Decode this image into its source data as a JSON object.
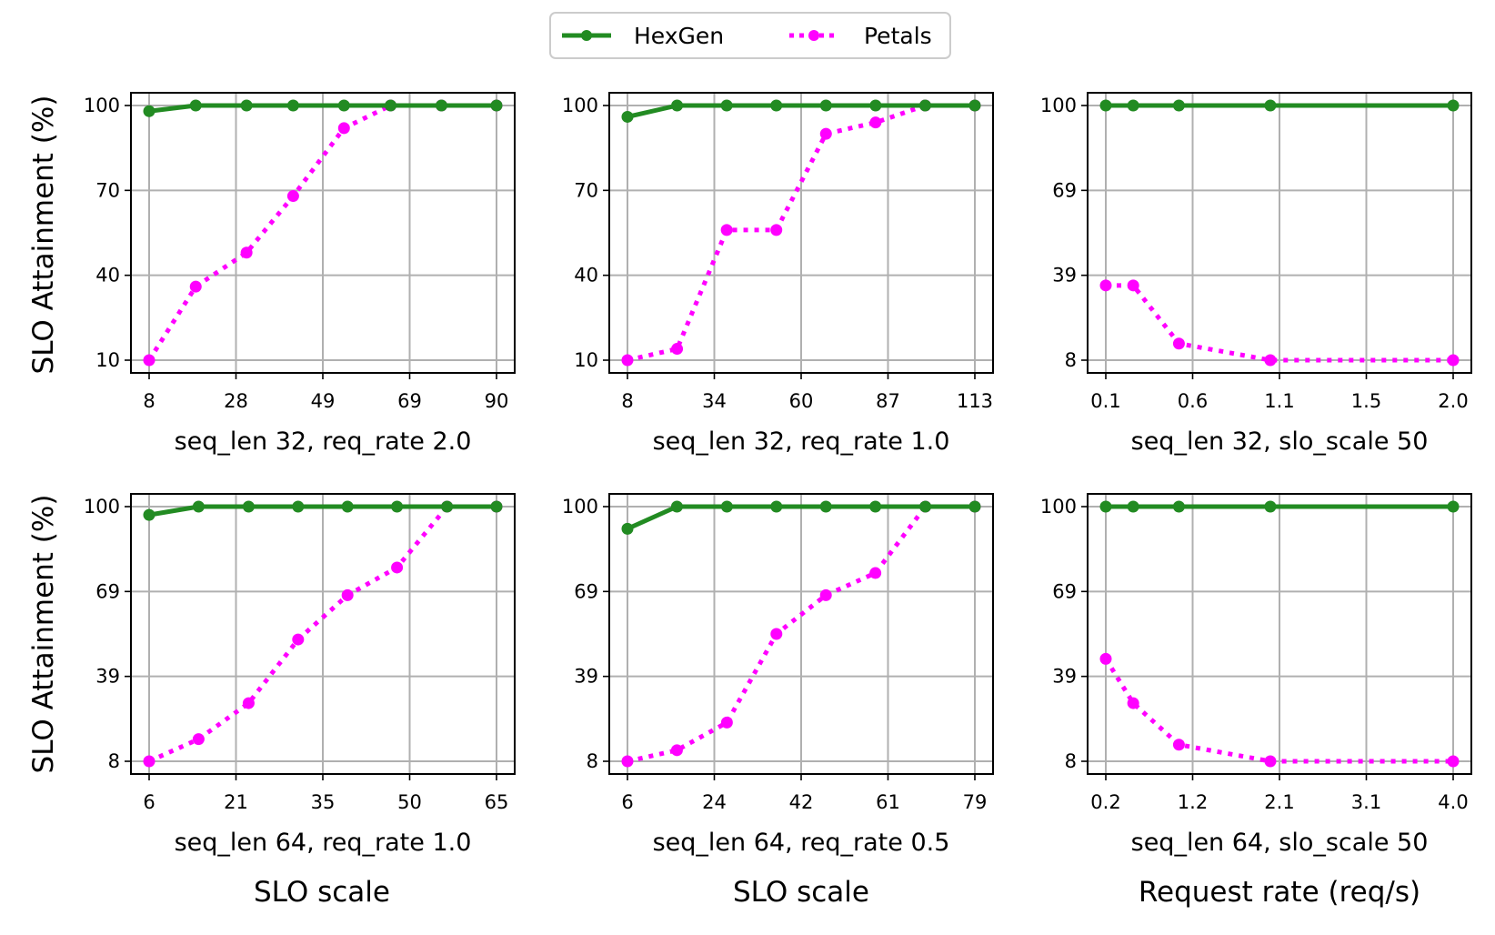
{
  "chart_data": [
    {
      "type": "line",
      "xlabel": "seq_len 32, req_rate 2.0",
      "ylabel": "SLO Attainment (%)",
      "xticks": [
        "8",
        "28",
        "49",
        "69",
        "90"
      ],
      "xlim": [
        8,
        90
      ],
      "yticks": [
        "10",
        "40",
        "70",
        "100"
      ],
      "ylim": [
        10,
        100
      ],
      "series": [
        {
          "name": "HexGen",
          "x": [
            8,
            19,
            31,
            42,
            54,
            65,
            77,
            90
          ],
          "y": [
            98,
            100,
            100,
            100,
            100,
            100,
            100,
            100
          ]
        },
        {
          "name": "Petals",
          "x": [
            8,
            19,
            31,
            42,
            54,
            65,
            77,
            90
          ],
          "y": [
            10,
            36,
            48,
            68,
            92,
            100,
            100,
            100
          ]
        }
      ]
    },
    {
      "type": "line",
      "xlabel": "seq_len 32, req_rate 1.0",
      "ylabel": "",
      "xticks": [
        "8",
        "34",
        "60",
        "87",
        "113"
      ],
      "xlim": [
        8,
        113
      ],
      "yticks": [
        "10",
        "40",
        "70",
        "100"
      ],
      "ylim": [
        10,
        100
      ],
      "series": [
        {
          "name": "HexGen",
          "x": [
            8,
            23,
            38,
            53,
            68,
            83,
            98,
            113
          ],
          "y": [
            96,
            100,
            100,
            100,
            100,
            100,
            100,
            100
          ]
        },
        {
          "name": "Petals",
          "x": [
            8,
            23,
            38,
            53,
            68,
            83,
            98,
            113
          ],
          "y": [
            10,
            14,
            56,
            56,
            90,
            94,
            100,
            100
          ]
        }
      ]
    },
    {
      "type": "line",
      "xlabel": "seq_len 32, slo_scale 50",
      "ylabel": "",
      "xticks": [
        "0.1",
        "0.6",
        "1.1",
        "1.5",
        "2.0"
      ],
      "xlim": [
        0.1,
        2.0
      ],
      "yticks": [
        "8",
        "39",
        "69",
        "100"
      ],
      "ylim": [
        8,
        100
      ],
      "series": [
        {
          "name": "HexGen",
          "x": [
            0.1,
            0.25,
            0.5,
            1.0,
            2.0
          ],
          "y": [
            100,
            100,
            100,
            100,
            100
          ]
        },
        {
          "name": "Petals",
          "x": [
            0.1,
            0.25,
            0.5,
            1.0,
            2.0
          ],
          "y": [
            35,
            35,
            14,
            8,
            8
          ]
        }
      ]
    },
    {
      "type": "line",
      "xlabel": "seq_len 64, req_rate 1.0",
      "ylabel": "SLO Attainment (%)",
      "xticks": [
        "6",
        "21",
        "35",
        "50",
        "65"
      ],
      "xlim": [
        6,
        65
      ],
      "yticks": [
        "8",
        "39",
        "69",
        "100"
      ],
      "ylim": [
        8,
        100
      ],
      "series": [
        {
          "name": "HexGen",
          "x": [
            6,
            14.4,
            22.9,
            31.3,
            39.7,
            48.1,
            56.6,
            65
          ],
          "y": [
            97,
            100,
            100,
            100,
            100,
            100,
            100,
            100
          ]
        },
        {
          "name": "Petals",
          "x": [
            6,
            14.4,
            22.9,
            31.3,
            39.7,
            48.1,
            56.6,
            65
          ],
          "y": [
            8,
            16,
            29,
            52,
            68,
            78,
            100,
            100
          ]
        }
      ]
    },
    {
      "type": "line",
      "xlabel": "seq_len 64, req_rate 0.5",
      "ylabel": "",
      "xticks": [
        "6",
        "24",
        "42",
        "61",
        "79"
      ],
      "xlim": [
        6,
        79
      ],
      "yticks": [
        "8",
        "39",
        "69",
        "100"
      ],
      "ylim": [
        8,
        100
      ],
      "series": [
        {
          "name": "HexGen",
          "x": [
            6,
            16.4,
            26.9,
            37.3,
            47.7,
            58.1,
            68.6,
            79
          ],
          "y": [
            92,
            100,
            100,
            100,
            100,
            100,
            100,
            100
          ]
        },
        {
          "name": "Petals",
          "x": [
            6,
            16.4,
            26.9,
            37.3,
            47.7,
            58.1,
            68.6,
            79
          ],
          "y": [
            8,
            12,
            22,
            54,
            68,
            76,
            100,
            100
          ]
        }
      ]
    },
    {
      "type": "line",
      "xlabel": "seq_len 64, slo_scale 50",
      "ylabel": "",
      "xticks": [
        "0.2",
        "1.2",
        "2.1",
        "3.1",
        "4.0"
      ],
      "xlim": [
        0.2,
        4.0
      ],
      "yticks": [
        "8",
        "39",
        "69",
        "100"
      ],
      "ylim": [
        8,
        100
      ],
      "series": [
        {
          "name": "HexGen",
          "x": [
            0.2,
            0.5,
            1.0,
            2.0,
            4.0
          ],
          "y": [
            100,
            100,
            100,
            100,
            100
          ]
        },
        {
          "name": "Petals",
          "x": [
            0.2,
            0.5,
            1.0,
            2.0,
            4.0
          ],
          "y": [
            45,
            29,
            14,
            8,
            8
          ]
        }
      ]
    }
  ],
  "legend": [
    {
      "label": "HexGen",
      "color": "#228b22",
      "style": "solid"
    },
    {
      "label": "Petals",
      "color": "#ff00ff",
      "style": "dotted"
    }
  ],
  "column_xlabels": [
    "SLO scale",
    "SLO scale",
    "Request rate (req/s)"
  ]
}
